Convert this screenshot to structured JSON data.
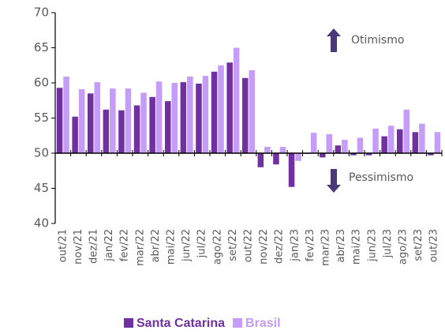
{
  "chart_data": {
    "type": "bar",
    "categories": [
      "out/21",
      "nov/21",
      "dez/21",
      "jan/22",
      "fev/22",
      "mar/22",
      "abr/22",
      "mai/22",
      "jun/22",
      "jul/22",
      "ago/22",
      "set/22",
      "out/22",
      "nov/22",
      "dez/22",
      "jan/23",
      "fev/23",
      "mar/23",
      "abr/23",
      "mai/23",
      "jun/23",
      "jul/23",
      "ago/23",
      "set/23",
      "out/23"
    ],
    "series": [
      {
        "name": "Santa Catarina",
        "color": "#7030a0",
        "values": [
          59.3,
          55.2,
          58.5,
          56.2,
          56.1,
          56.8,
          58.0,
          57.4,
          60.1,
          59.9,
          61.6,
          62.9,
          60.7,
          48.0,
          48.4,
          45.2,
          49.9,
          49.4,
          51.1,
          49.7,
          49.7,
          52.4,
          53.4,
          53.0,
          49.7
        ]
      },
      {
        "name": "Brasil",
        "color": "#c59cf7",
        "values": [
          60.9,
          59.1,
          60.1,
          59.2,
          59.2,
          58.6,
          60.2,
          60.0,
          60.9,
          61.0,
          62.5,
          65.0,
          61.8,
          50.9,
          50.9,
          48.9,
          52.9,
          52.7,
          51.9,
          52.2,
          53.5,
          53.9,
          56.2,
          54.2,
          53.0
        ]
      }
    ],
    "ylim": [
      40,
      70
    ],
    "yticks": [
      40,
      45,
      50,
      55,
      60,
      65,
      70
    ],
    "baseline": 50,
    "annotations": [
      "Otimismo",
      "Pessimismo"
    ],
    "legend": "bottom"
  }
}
